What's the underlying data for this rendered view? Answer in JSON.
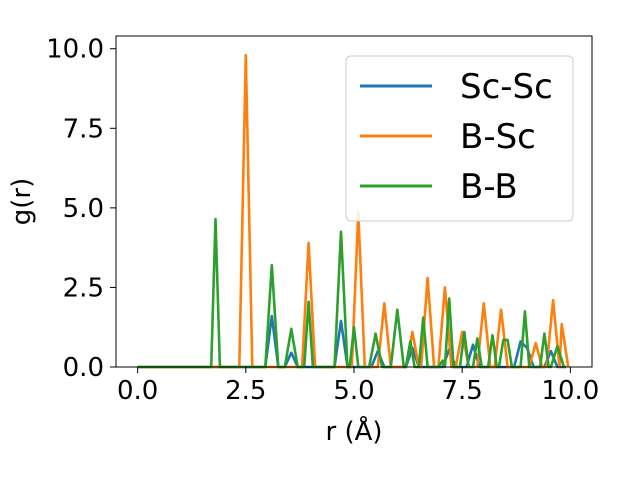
{
  "chart_data": {
    "type": "line",
    "title": "",
    "xlabel": "r (Å)",
    "ylabel": "g(r)",
    "xlim": [
      -0.5,
      10.5
    ],
    "ylim": [
      0,
      10.4
    ],
    "xticks": [
      "0.0",
      "2.5",
      "5.0",
      "7.5",
      "10.0"
    ],
    "yticks": [
      "0.0",
      "2.5",
      "5.0",
      "7.5",
      "10.0"
    ],
    "grid": false,
    "legend_position": "top-right",
    "colors": {
      "Sc-Sc": "#1f77b4",
      "B-Sc": "#ff7f0e",
      "B-B": "#2ca02c"
    },
    "series": [
      {
        "name": "Sc-Sc",
        "points": [
          [
            0.0,
            0
          ],
          [
            2.95,
            0
          ],
          [
            3.1,
            1.6
          ],
          [
            3.25,
            0
          ],
          [
            3.4,
            0
          ],
          [
            3.55,
            0.45
          ],
          [
            3.7,
            0
          ],
          [
            4.55,
            0
          ],
          [
            4.7,
            1.45
          ],
          [
            4.85,
            0
          ],
          [
            5.4,
            0
          ],
          [
            5.55,
            0.5
          ],
          [
            5.7,
            0
          ],
          [
            6.2,
            0
          ],
          [
            6.35,
            0.6
          ],
          [
            6.5,
            0
          ],
          [
            7.05,
            0
          ],
          [
            7.2,
            0.55
          ],
          [
            7.35,
            0
          ],
          [
            7.6,
            0
          ],
          [
            7.75,
            0.7
          ],
          [
            7.9,
            0
          ],
          [
            8.7,
            0
          ],
          [
            8.85,
            0.8
          ],
          [
            9.0,
            0.6
          ],
          [
            9.15,
            0
          ],
          [
            9.4,
            0
          ],
          [
            9.55,
            0.5
          ],
          [
            9.7,
            0
          ],
          [
            9.9,
            0
          ]
        ]
      },
      {
        "name": "B-Sc",
        "points": [
          [
            0.0,
            0
          ],
          [
            2.35,
            0
          ],
          [
            2.5,
            9.8
          ],
          [
            2.65,
            0
          ],
          [
            3.8,
            0
          ],
          [
            3.95,
            3.9
          ],
          [
            4.1,
            0
          ],
          [
            4.95,
            0
          ],
          [
            5.1,
            4.85
          ],
          [
            5.25,
            0
          ],
          [
            5.55,
            0
          ],
          [
            5.7,
            2.0
          ],
          [
            5.85,
            0
          ],
          [
            6.2,
            0
          ],
          [
            6.35,
            1.1
          ],
          [
            6.5,
            0
          ],
          [
            6.55,
            0
          ],
          [
            6.7,
            2.8
          ],
          [
            6.85,
            0
          ],
          [
            6.95,
            0
          ],
          [
            7.1,
            2.5
          ],
          [
            7.25,
            0
          ],
          [
            7.35,
            0
          ],
          [
            7.5,
            1.1
          ],
          [
            7.65,
            0
          ],
          [
            7.85,
            0
          ],
          [
            8.0,
            2.0
          ],
          [
            8.15,
            0
          ],
          [
            8.25,
            0
          ],
          [
            8.4,
            1.8
          ],
          [
            8.55,
            0
          ],
          [
            9.05,
            0
          ],
          [
            9.2,
            0.75
          ],
          [
            9.35,
            0
          ],
          [
            9.45,
            0
          ],
          [
            9.6,
            2.1
          ],
          [
            9.75,
            0
          ],
          [
            9.8,
            1.35
          ],
          [
            9.95,
            0
          ]
        ]
      },
      {
        "name": "B-B",
        "points": [
          [
            0.0,
            0
          ],
          [
            1.7,
            0
          ],
          [
            1.8,
            4.65
          ],
          [
            1.9,
            0
          ],
          [
            2.95,
            0
          ],
          [
            3.1,
            3.2
          ],
          [
            3.25,
            0
          ],
          [
            3.4,
            0
          ],
          [
            3.55,
            1.2
          ],
          [
            3.7,
            0
          ],
          [
            3.85,
            0
          ],
          [
            3.95,
            2.05
          ],
          [
            4.05,
            0
          ],
          [
            4.55,
            0
          ],
          [
            4.7,
            4.25
          ],
          [
            4.85,
            0
          ],
          [
            4.9,
            0
          ],
          [
            5.0,
            1.25
          ],
          [
            5.1,
            0
          ],
          [
            5.35,
            0
          ],
          [
            5.5,
            1.05
          ],
          [
            5.65,
            0
          ],
          [
            5.85,
            0
          ],
          [
            6.0,
            1.8
          ],
          [
            6.15,
            0
          ],
          [
            6.2,
            0
          ],
          [
            6.3,
            0.8
          ],
          [
            6.4,
            0
          ],
          [
            6.5,
            0
          ],
          [
            6.6,
            1.55
          ],
          [
            6.7,
            0
          ],
          [
            6.95,
            0
          ],
          [
            7.05,
            0.2
          ],
          [
            7.1,
            0
          ],
          [
            7.2,
            2.15
          ],
          [
            7.3,
            0
          ],
          [
            7.45,
            0
          ],
          [
            7.55,
            1.1
          ],
          [
            7.65,
            0
          ],
          [
            7.75,
            0
          ],
          [
            7.85,
            0.9
          ],
          [
            7.95,
            0
          ],
          [
            8.1,
            0
          ],
          [
            8.2,
            1.0
          ],
          [
            8.3,
            0
          ],
          [
            8.35,
            0
          ],
          [
            8.45,
            0.85
          ],
          [
            8.55,
            0.85
          ],
          [
            8.65,
            0
          ],
          [
            8.85,
            0
          ],
          [
            8.95,
            1.75
          ],
          [
            9.05,
            0
          ],
          [
            9.3,
            0
          ],
          [
            9.4,
            1.05
          ],
          [
            9.5,
            0
          ],
          [
            9.55,
            0
          ],
          [
            9.7,
            0.65
          ],
          [
            9.85,
            0
          ],
          [
            9.9,
            0
          ]
        ]
      }
    ]
  }
}
